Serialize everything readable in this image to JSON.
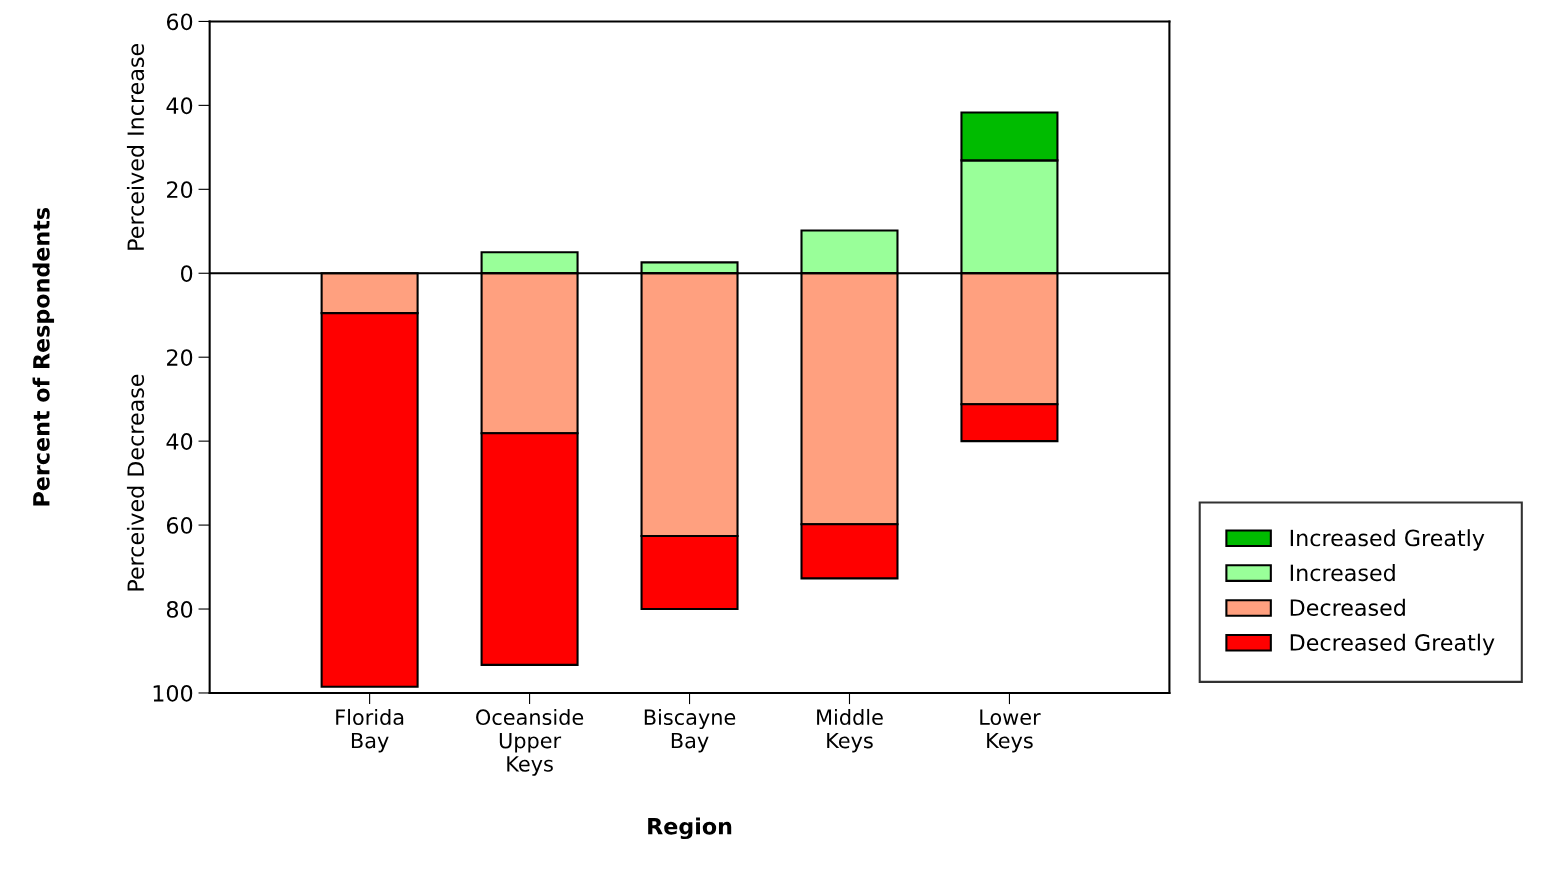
{
  "chart_data": {
    "type": "bar",
    "stacked": true,
    "xlabel": "Region",
    "ylabel": "Percent of Respondents",
    "annotations": [
      "Perceived Increase",
      "Perceived Decrease"
    ],
    "categories": [
      "Florida\nBay",
      "Oceanside\nUpper\nKeys",
      "Biscayne\nBay",
      "Middle\nKeys",
      "Lower\nKeys"
    ],
    "series": [
      {
        "name": "Increased",
        "color": "#99ff99",
        "values": [
          null,
          5,
          2.6,
          10.2,
          26.9
        ]
      },
      {
        "name": "Increased Greatly",
        "color": "#00bb00",
        "values": [
          null,
          null,
          null,
          null,
          11.4
        ]
      },
      {
        "name": "Decreased",
        "color": "#ffa07f",
        "values": [
          -9.5,
          -38.1,
          -62.6,
          -59.8,
          -31.2
        ]
      },
      {
        "name": "Decreased Greatly",
        "color": "#ff0000",
        "values": [
          -89,
          -55.2,
          -17.4,
          -12.9,
          -8.8
        ]
      }
    ],
    "ylim": [
      -100,
      60
    ],
    "yticks": [
      60,
      40,
      20,
      0,
      {
        "value": -20,
        "label": "20"
      },
      {
        "value": -40,
        "label": "40"
      },
      {
        "value": -60,
        "label": "60"
      },
      {
        "value": -80,
        "label": "80"
      },
      {
        "value": -100,
        "label": "100"
      }
    ],
    "ref_lines": [
      {
        "axis": "y",
        "value": 0,
        "color": "#000000"
      }
    ],
    "grid": false,
    "legend": "right"
  }
}
